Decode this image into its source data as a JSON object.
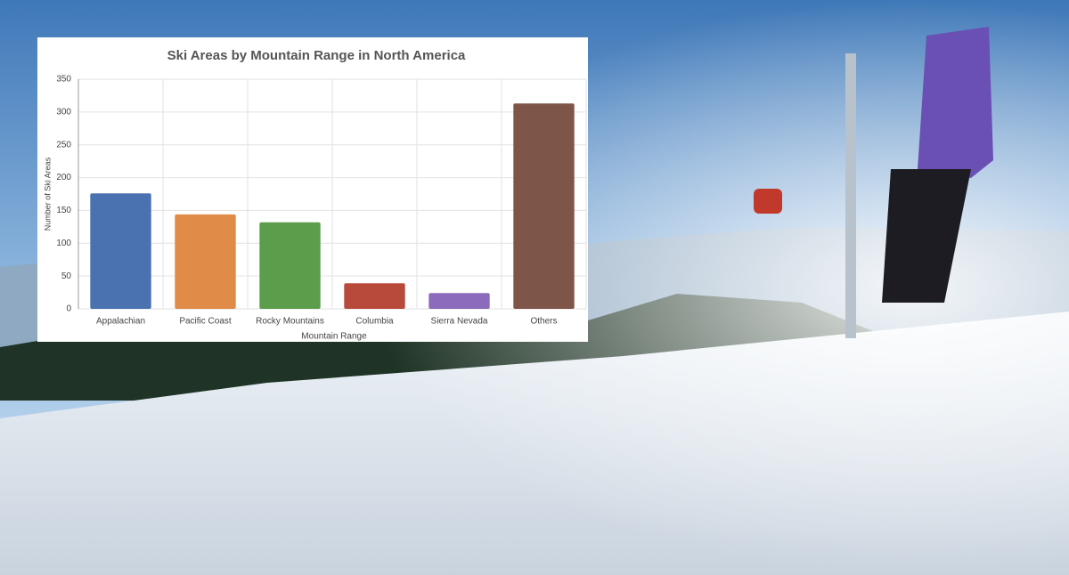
{
  "chart_data": {
    "type": "bar",
    "title": "Ski Areas by Mountain Range in North America",
    "xlabel": "Mountain Range",
    "ylabel": "Number of Ski Areas",
    "categories": [
      "Appalachian",
      "Pacific Coast",
      "Rocky Mountains",
      "Columbia",
      "Sierra Nevada",
      "Others"
    ],
    "values": [
      176,
      144,
      132,
      39,
      24,
      313
    ],
    "colors": [
      "#4a72b0",
      "#e08b47",
      "#5b9d4b",
      "#b84a3c",
      "#8c6bbd",
      "#7e5549"
    ],
    "ylim": [
      0,
      350
    ],
    "yticks": [
      0,
      50,
      100,
      150,
      200,
      250,
      300,
      350
    ],
    "grid": true
  }
}
